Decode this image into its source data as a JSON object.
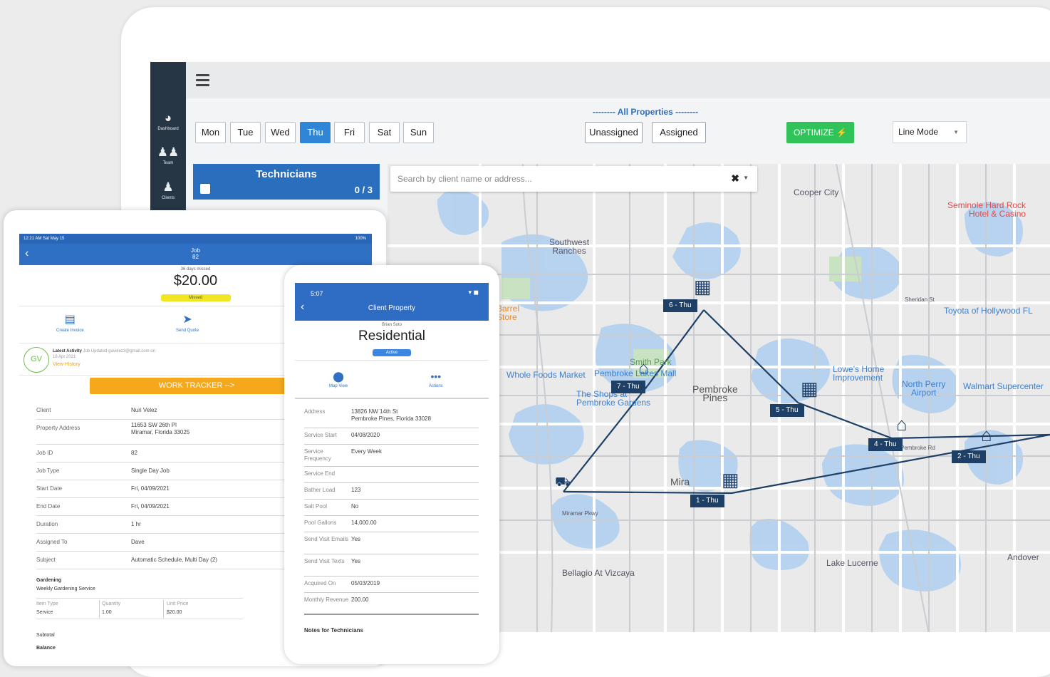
{
  "sidebar": {
    "items": [
      {
        "label": "Dashboard",
        "icon": "gauge-icon"
      },
      {
        "label": "Team",
        "icon": "users-icon"
      },
      {
        "label": "Clients",
        "icon": "user-icon"
      }
    ]
  },
  "scheduler": {
    "days": [
      "Mon",
      "Tue",
      "Wed",
      "Thu",
      "Fri",
      "Sat",
      "Sun"
    ],
    "active_day": "Thu",
    "properties_title": "-------- All Properties --------",
    "filter_unassigned": "Unassigned",
    "filter_assigned": "Assigned",
    "optimize_label": "OPTIMIZE ⚡",
    "mode_label": "Line Mode",
    "technicians_title": "Technicians",
    "technicians_count": "0 / 3",
    "search_placeholder": "Search by client name or address...",
    "clear_symbol": "✖"
  },
  "map": {
    "labels": {
      "cooper_city": "Cooper City",
      "seminole": "Seminole Hard Rock\nHotel & Casino",
      "southwest_ranches": "Southwest\nRanches",
      "toyota": "Toyota of Hollywood FL",
      "barrel_store": "Barrel\nStore",
      "whole_foods": "Whole Foods Market",
      "pembroke_lakes_mall": "Pembroke Lakes Mall",
      "shops_pembroke": "The Shops at\nPembroke Gardens",
      "smith_park": "Smith Park",
      "pembroke_pines": "Pembroke\nPines",
      "lowes": "Lowe's Home\nImprovement",
      "north_perry": "North Perry\nAirport",
      "walmart": "Walmart Supercenter",
      "miramar": "Mira",
      "bellagio": "Bellagio At Vizcaya",
      "lake_lucerne": "Lake Lucerne",
      "andover": "Andover",
      "sheridan": "Sheridan St",
      "pembroke_rd": "Pembroke Rd",
      "miramar_pkwy": "Miramar Pkwy"
    },
    "stops": [
      "6 - Thu",
      "7 - Thu",
      "5 - Thu",
      "4 - Thu",
      "2 - Thu",
      "1 - Thu"
    ],
    "route_color": "#1e3f66"
  },
  "tablet": {
    "status_left": "12:21 AM   Sat May 15",
    "status_right": "100%",
    "nav_title": "Job",
    "nav_sub": "82",
    "days_missed": "36 days missed",
    "amount": "$20.00",
    "badge": "Missed",
    "action_invoice": "Create Invoice",
    "action_quote": "Send Quote",
    "avatar": "GV",
    "activity_title": "Latest Activity",
    "activity_text": "Job Updated gavelez3@gmail.com on",
    "activity_date": "16 Apr 2021",
    "activity_link": "View History",
    "tracker": "WORK TRACKER -->",
    "rows": [
      {
        "k": "Client",
        "v": "Nuri Velez"
      },
      {
        "k": "Property Address",
        "v": "11653 SW 26th Pl",
        "v2": "Miramar, Florida 33025"
      },
      {
        "k": "Job ID",
        "v": "82"
      },
      {
        "k": "Job Type",
        "v": "Single Day Job"
      },
      {
        "k": "Start Date",
        "v": "Fri, 04/09/2021"
      },
      {
        "k": "End Date",
        "v": "Fri, 04/09/2021"
      },
      {
        "k": "Duration",
        "v": "1 hr"
      },
      {
        "k": "Assigned To",
        "v": "Dave"
      },
      {
        "k": "Subject",
        "v": "Automatic Schedule, Multi Day (2)"
      }
    ],
    "service_title": "Gardening",
    "service_desc": "Weekly Gardening Service",
    "items_headers": [
      "Item Type",
      "Quantity",
      "Unit Price"
    ],
    "items_values": [
      "Service",
      "1.00",
      "$20.00"
    ],
    "subtotal": "Subtotal",
    "balance": "Balance"
  },
  "phone": {
    "time": "5:07",
    "signal": "▾ ◼",
    "title": "Client Property",
    "owner": "Brian Soto",
    "kind": "Residential",
    "status": "Active",
    "action_map": "Map View",
    "action_more": "Actions",
    "rows": [
      {
        "k": "Address",
        "v": "13826 NW 14th St",
        "v2": "Pembroke Pines, Florida 33028"
      },
      {
        "k": "Service Start",
        "v": "04/08/2020"
      },
      {
        "k": "Service Frequency",
        "v": "Every Week"
      },
      {
        "k": "Service End",
        "v": ""
      },
      {
        "k": "Bather Load",
        "v": "123"
      },
      {
        "k": "Salt Pool",
        "v": "No"
      },
      {
        "k": "Pool Gallons",
        "v": "14,000.00"
      },
      {
        "k": "Send Visit Emails",
        "v": "Yes"
      },
      {
        "k": "Send Visit Texts",
        "v": "Yes"
      },
      {
        "k": "Acquired On",
        "v": "05/03/2019"
      },
      {
        "k": "Monthly Revenue",
        "v": "200.00"
      }
    ],
    "notes": "Notes for Technicians"
  }
}
